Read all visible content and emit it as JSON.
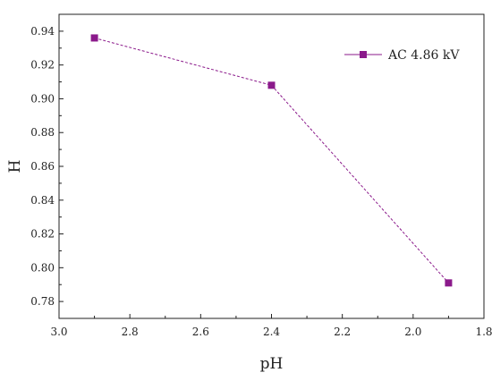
{
  "chart_data": {
    "type": "line",
    "xlabel": "pH",
    "ylabel": "H",
    "xlim": [
      3.0,
      1.8
    ],
    "ylim": [
      0.77,
      0.95
    ],
    "x_ticks": [
      "3.0",
      "2.8",
      "2.6",
      "2.4",
      "2.2",
      "2.0",
      "1.8"
    ],
    "y_ticks": [
      "0.78",
      "0.80",
      "0.82",
      "0.84",
      "0.86",
      "0.88",
      "0.90",
      "0.92",
      "0.94"
    ],
    "grid": false,
    "legend_position": "top-right",
    "series": [
      {
        "name": "AC 4.86 kV",
        "color": "#8b1a8b",
        "marker": "square",
        "x": [
          2.9,
          2.4,
          1.9
        ],
        "y": [
          0.936,
          0.908,
          0.791
        ]
      }
    ]
  }
}
